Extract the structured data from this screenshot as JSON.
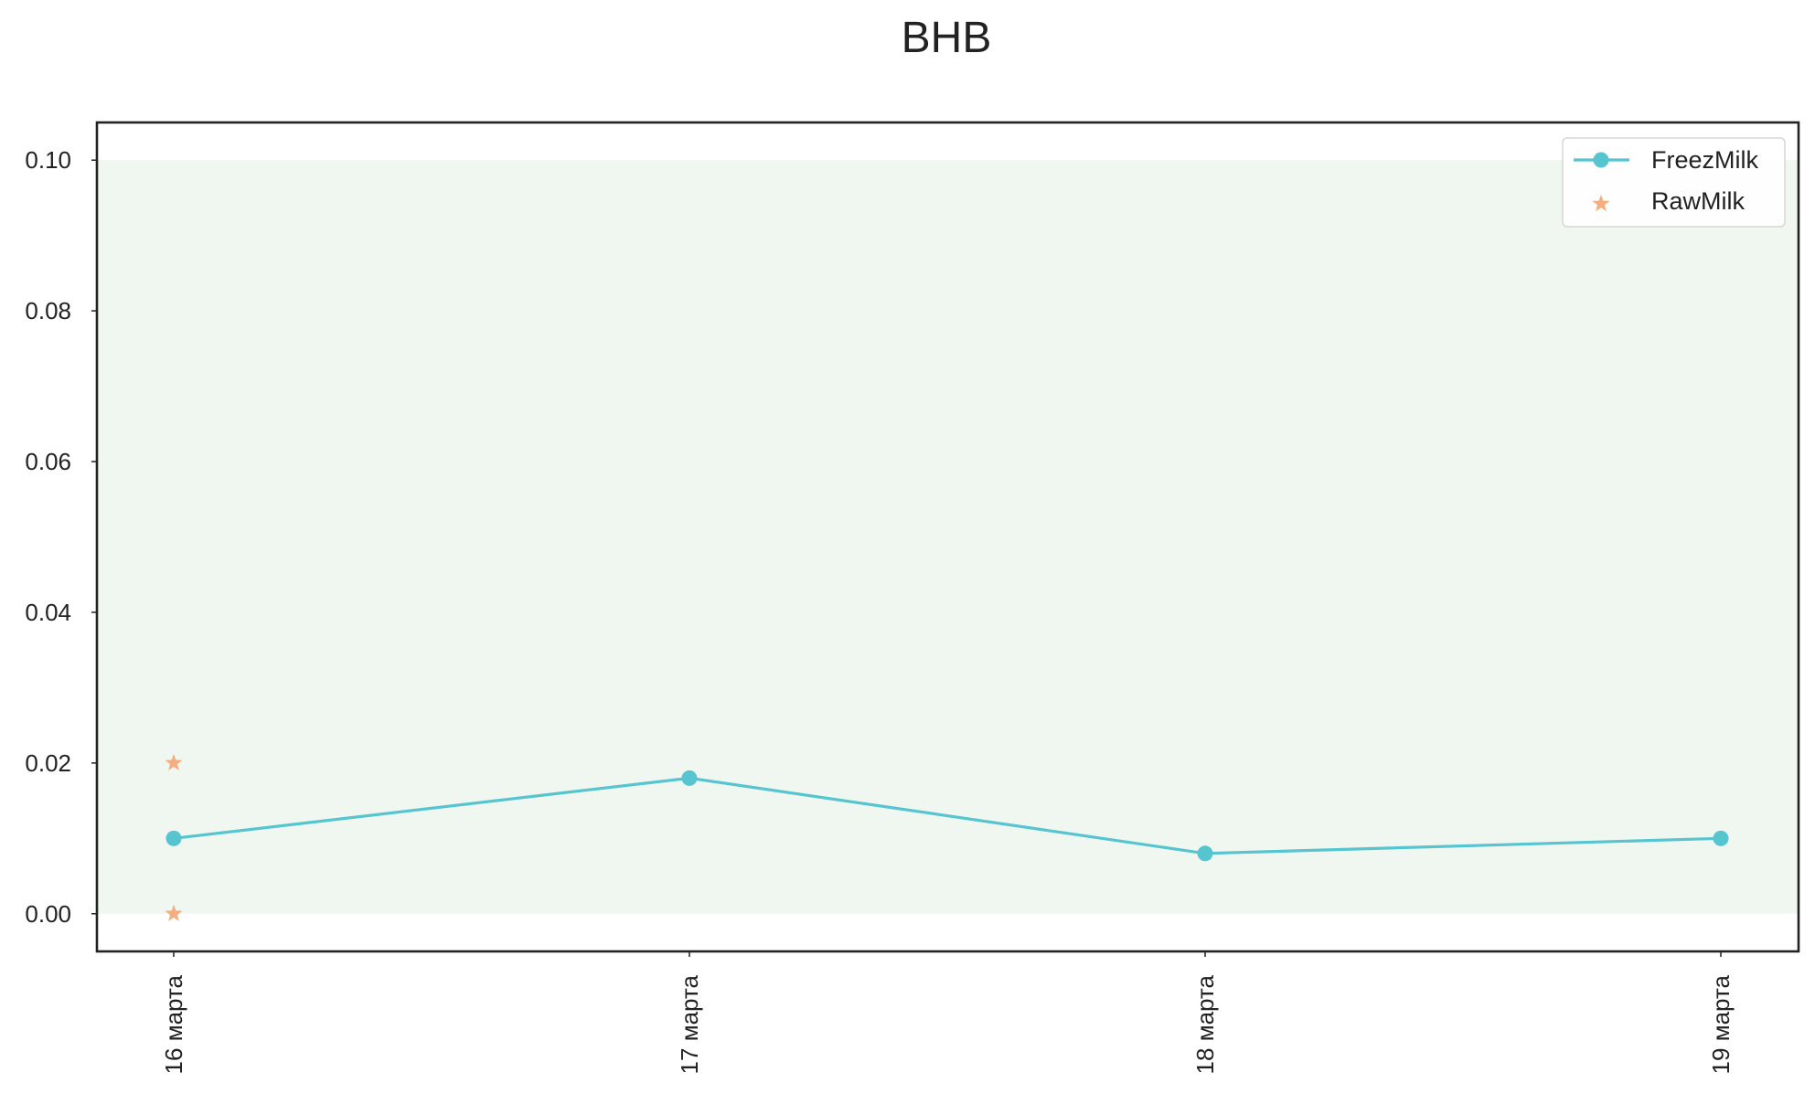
{
  "chart_data": {
    "type": "line",
    "title": "BHB",
    "xlabel": "",
    "ylabel": "",
    "categories": [
      "16 марта",
      "17 марта",
      "18 марта",
      "19 марта"
    ],
    "ylim": [
      -0.005,
      0.105
    ],
    "yticks": [
      0.0,
      0.02,
      0.04,
      0.06,
      0.08,
      0.1
    ],
    "ytick_labels": [
      "0.00",
      "0.02",
      "0.04",
      "0.06",
      "0.08",
      "0.10"
    ],
    "reference_band": {
      "ymin": 0.0,
      "ymax": 0.1,
      "color": "#f0f7f1"
    },
    "grid": false,
    "legend_position": "top-right",
    "series": [
      {
        "name": "FreezMilk",
        "type": "line",
        "marker": "circle",
        "color": "#56c5cf",
        "points": [
          {
            "x": "16 марта",
            "y": 0.01
          },
          {
            "x": "17 марта",
            "y": 0.018
          },
          {
            "x": "18 марта",
            "y": 0.008
          },
          {
            "x": "19 марта",
            "y": 0.01
          }
        ]
      },
      {
        "name": "RawMilk",
        "type": "scatter",
        "marker": "star",
        "color": "#f4ae80",
        "points": [
          {
            "x": "16 марта",
            "y": 0.02
          },
          {
            "x": "16 марта",
            "y": 0.0
          }
        ]
      }
    ]
  }
}
